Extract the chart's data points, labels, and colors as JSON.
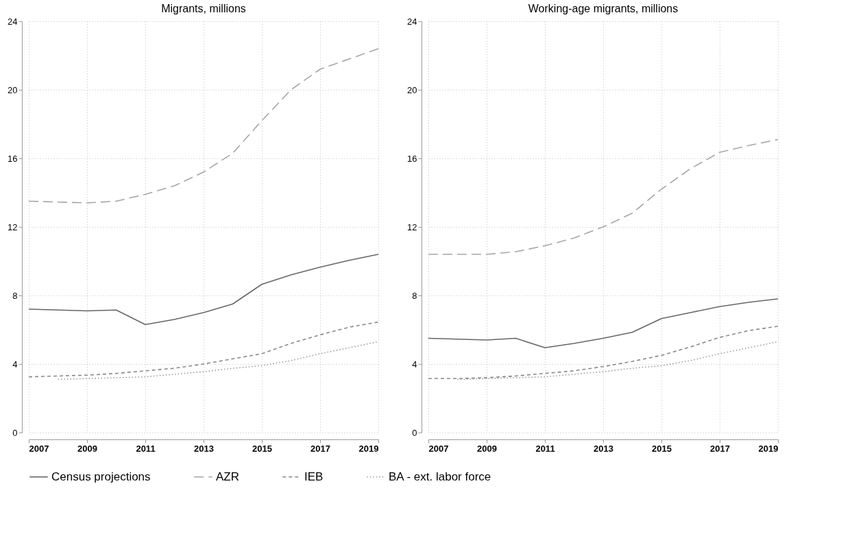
{
  "chart_data": [
    {
      "type": "line",
      "title": "Migrants, millions",
      "x": [
        2007,
        2008,
        2009,
        2010,
        2011,
        2012,
        2013,
        2014,
        2015,
        2016,
        2017,
        2018,
        2019
      ],
      "xlim": [
        2007,
        2019
      ],
      "xticks": [
        2007,
        2009,
        2011,
        2013,
        2015,
        2017,
        2019
      ],
      "ylim": [
        0,
        24
      ],
      "yticks": [
        0,
        4,
        8,
        12,
        16,
        20,
        24
      ],
      "grid": true,
      "legend": "bottom",
      "marker": "none",
      "series": [
        {
          "name": "Census projections",
          "color": "#666666",
          "line_style": "solid",
          "values": [
            7.2,
            7.15,
            7.1,
            7.15,
            6.3,
            6.6,
            7.0,
            7.5,
            8.65,
            9.2,
            9.65,
            10.05,
            10.4
          ]
        },
        {
          "name": "AZR",
          "color": "#a6a6a6",
          "line_style": "dashed",
          "values": [
            13.5,
            13.45,
            13.4,
            13.5,
            13.9,
            14.4,
            15.2,
            16.3,
            18.2,
            20.0,
            21.2,
            21.8,
            22.4
          ]
        },
        {
          "name": "IEB",
          "color": "#888888",
          "line_style": "short_dashed",
          "values": [
            3.25,
            3.3,
            3.35,
            3.45,
            3.6,
            3.75,
            4.0,
            4.3,
            4.6,
            5.2,
            5.7,
            6.15,
            6.45
          ]
        },
        {
          "name": "BA - ext. labor force",
          "color": "#999999",
          "line_style": "dotted",
          "values": [
            null,
            3.1,
            3.15,
            3.2,
            3.25,
            3.4,
            3.55,
            3.75,
            3.9,
            4.2,
            4.6,
            4.95,
            5.3
          ]
        }
      ]
    },
    {
      "type": "line",
      "title": "Working-age migrants, millions",
      "x": [
        2007,
        2008,
        2009,
        2010,
        2011,
        2012,
        2013,
        2014,
        2015,
        2016,
        2017,
        2018,
        2019
      ],
      "xlim": [
        2007,
        2019
      ],
      "xticks": [
        2007,
        2009,
        2011,
        2013,
        2015,
        2017,
        2019
      ],
      "ylim": [
        0,
        24
      ],
      "yticks": [
        0,
        4,
        8,
        12,
        16,
        20,
        24
      ],
      "grid": true,
      "legend": "bottom",
      "marker": "none",
      "series": [
        {
          "name": "Census projections",
          "color": "#666666",
          "line_style": "solid",
          "values": [
            5.5,
            5.45,
            5.4,
            5.5,
            4.95,
            5.2,
            5.5,
            5.85,
            6.65,
            7.0,
            7.35,
            7.6,
            7.8
          ]
        },
        {
          "name": "AZR",
          "color": "#a6a6a6",
          "line_style": "dashed",
          "values": [
            10.4,
            10.4,
            10.4,
            10.55,
            10.9,
            11.35,
            12.0,
            12.8,
            14.2,
            15.4,
            16.35,
            16.75,
            17.1
          ]
        },
        {
          "name": "IEB",
          "color": "#888888",
          "line_style": "short_dashed",
          "values": [
            3.15,
            3.15,
            3.2,
            3.3,
            3.45,
            3.6,
            3.85,
            4.15,
            4.5,
            5.0,
            5.55,
            5.95,
            6.2
          ]
        },
        {
          "name": "BA - ext. labor force",
          "color": "#999999",
          "line_style": "dotted",
          "values": [
            null,
            3.1,
            3.15,
            3.2,
            3.25,
            3.4,
            3.55,
            3.75,
            3.9,
            4.2,
            4.6,
            4.95,
            5.3
          ]
        }
      ]
    }
  ]
}
